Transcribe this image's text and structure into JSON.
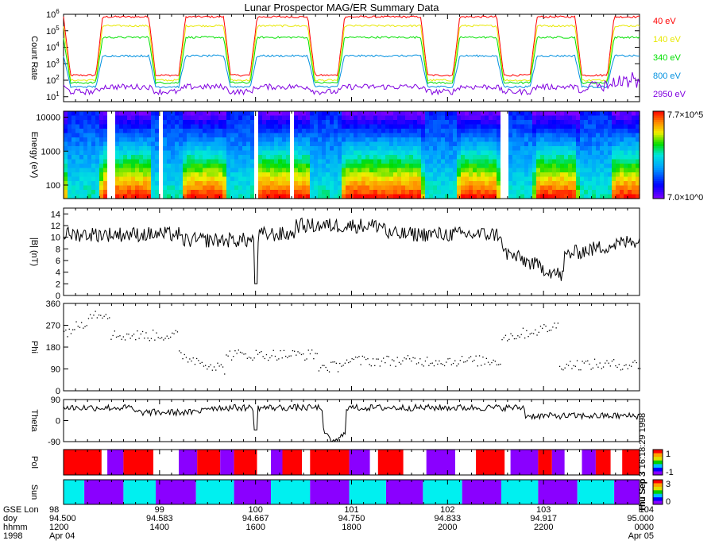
{
  "chart_data": {
    "type": "line",
    "title": "Lunar Prospector MAG/ER Summary Data",
    "x_axis": {
      "rows": [
        {
          "label": "GSE Lon",
          "values": [
            "98",
            "99",
            "100",
            "101",
            "102",
            "103",
            "104"
          ]
        },
        {
          "label": "doy",
          "values": [
            "94.500",
            "94.583",
            "94.667",
            "94.750",
            "94.833",
            "94.917",
            "95.000"
          ]
        },
        {
          "label": "hhmm",
          "values": [
            "1200",
            "1400",
            "1600",
            "1800",
            "2000",
            "2200",
            "0000"
          ]
        },
        {
          "label": "1998",
          "values": [
            "Apr 04",
            "",
            "",
            "",
            "",
            "",
            "Apr 05"
          ]
        }
      ],
      "range": [
        94.5,
        95.0
      ]
    },
    "panels": [
      {
        "name": "count-rate",
        "ylabel": "Count Rate",
        "yscale": "log",
        "ylim": [
          5,
          1000000
        ],
        "tick_labels": [
          "10^6",
          "10^5",
          "10^4",
          "10^3",
          "10^2",
          "10^1"
        ],
        "series": [
          {
            "name": "40 eV",
            "color": "#ff0000",
            "level": 700000,
            "dip": 200
          },
          {
            "name": "140 eV",
            "color": "#e8e800",
            "level": 200000,
            "dip": 100
          },
          {
            "name": "340 eV",
            "color": "#00e000",
            "level": 40000,
            "dip": 70
          },
          {
            "name": "800 eV",
            "color": "#0090e0",
            "level": 3000,
            "dip": 40
          },
          {
            "name": "2950 eV",
            "color": "#8000e0",
            "level": 40,
            "dip": 20
          }
        ]
      },
      {
        "name": "energy-spectrogram",
        "ylabel": "Energy (eV)",
        "yscale": "log",
        "ylim": [
          40,
          15000
        ],
        "tick_labels": [
          "10000",
          "1000",
          "100"
        ],
        "colorbar": {
          "max_label": "7.7×10^5",
          "min_label": "7.0×10^0"
        }
      },
      {
        "name": "b-magnitude",
        "ylabel": "|B| (nT)",
        "ylim": [
          0,
          15
        ],
        "tick_labels": [
          "14",
          "12",
          "10",
          "8",
          "6",
          "4",
          "2",
          "0"
        ]
      },
      {
        "name": "phi",
        "ylabel": "Phi",
        "ylim": [
          0,
          360
        ],
        "tick_labels": [
          "360",
          "270",
          "180",
          "90",
          "0"
        ]
      },
      {
        "name": "theta",
        "ylabel": "Theta",
        "ylim": [
          -90,
          90
        ],
        "tick_labels": [
          "90",
          "0",
          "-90"
        ]
      },
      {
        "name": "pol",
        "ylabel": "Pol",
        "colorbar": {
          "max_label": "1",
          "min_label": "-1"
        },
        "side_text": "Thu Sep 3 16:18:29 1998"
      },
      {
        "name": "sun",
        "ylabel": "Sun",
        "colorbar": {
          "max_label": "3",
          "min_label": "0"
        },
        "side_text": "Thu Sep 3"
      }
    ],
    "sun_segments": [
      {
        "start": 94.5,
        "end": 94.518,
        "state": "sun"
      },
      {
        "start": 94.518,
        "end": 94.552,
        "state": "shadow"
      },
      {
        "start": 94.552,
        "end": 94.58,
        "state": "sun"
      },
      {
        "start": 94.58,
        "end": 94.615,
        "state": "shadow"
      },
      {
        "start": 94.615,
        "end": 94.648,
        "state": "sun"
      },
      {
        "start": 94.648,
        "end": 94.68,
        "state": "shadow"
      },
      {
        "start": 94.68,
        "end": 94.714,
        "state": "sun"
      },
      {
        "start": 94.714,
        "end": 94.748,
        "state": "shadow"
      },
      {
        "start": 94.748,
        "end": 94.78,
        "state": "sun"
      },
      {
        "start": 94.78,
        "end": 94.812,
        "state": "shadow"
      },
      {
        "start": 94.812,
        "end": 94.846,
        "state": "sun"
      },
      {
        "start": 94.846,
        "end": 94.88,
        "state": "shadow"
      },
      {
        "start": 94.88,
        "end": 94.912,
        "state": "sun"
      },
      {
        "start": 94.912,
        "end": 94.946,
        "state": "shadow"
      },
      {
        "start": 94.946,
        "end": 94.978,
        "state": "sun"
      },
      {
        "start": 94.978,
        "end": 95.0,
        "state": "shadow"
      }
    ],
    "pol_segments": [
      {
        "start": 94.5,
        "end": 94.533,
        "state": "pos"
      },
      {
        "start": 94.533,
        "end": 94.538,
        "state": "none"
      },
      {
        "start": 94.538,
        "end": 94.552,
        "state": "neg"
      },
      {
        "start": 94.552,
        "end": 94.578,
        "state": "pos"
      },
      {
        "start": 94.578,
        "end": 94.6,
        "state": "none"
      },
      {
        "start": 94.6,
        "end": 94.616,
        "state": "neg"
      },
      {
        "start": 94.616,
        "end": 94.636,
        "state": "pos"
      },
      {
        "start": 94.636,
        "end": 94.648,
        "state": "neg"
      },
      {
        "start": 94.648,
        "end": 94.668,
        "state": "pos"
      },
      {
        "start": 94.668,
        "end": 94.68,
        "state": "none"
      },
      {
        "start": 94.68,
        "end": 94.69,
        "state": "neg"
      },
      {
        "start": 94.69,
        "end": 94.707,
        "state": "pos"
      },
      {
        "start": 94.707,
        "end": 94.714,
        "state": "none"
      },
      {
        "start": 94.714,
        "end": 94.748,
        "state": "pos"
      },
      {
        "start": 94.748,
        "end": 94.766,
        "state": "neg"
      },
      {
        "start": 94.766,
        "end": 94.773,
        "state": "none"
      },
      {
        "start": 94.773,
        "end": 94.795,
        "state": "pos"
      },
      {
        "start": 94.795,
        "end": 94.815,
        "state": "none"
      },
      {
        "start": 94.815,
        "end": 94.84,
        "state": "neg"
      },
      {
        "start": 94.84,
        "end": 94.858,
        "state": "none"
      },
      {
        "start": 94.858,
        "end": 94.883,
        "state": "pos"
      },
      {
        "start": 94.883,
        "end": 94.888,
        "state": "none"
      },
      {
        "start": 94.888,
        "end": 94.912,
        "state": "neg"
      },
      {
        "start": 94.912,
        "end": 94.924,
        "state": "pos"
      },
      {
        "start": 94.924,
        "end": 94.935,
        "state": "neg"
      },
      {
        "start": 94.935,
        "end": 94.95,
        "state": "none"
      },
      {
        "start": 94.95,
        "end": 94.962,
        "state": "neg"
      },
      {
        "start": 94.962,
        "end": 94.975,
        "state": "pos"
      },
      {
        "start": 94.975,
        "end": 94.985,
        "state": "none"
      },
      {
        "start": 94.985,
        "end": 95.0,
        "state": "pos"
      }
    ],
    "colors": {
      "sun": "#00f0f0",
      "shadow": "#8a00ff",
      "pos": "#ff0000",
      "neg": "#8a00ff",
      "none": "#ffffff"
    }
  }
}
